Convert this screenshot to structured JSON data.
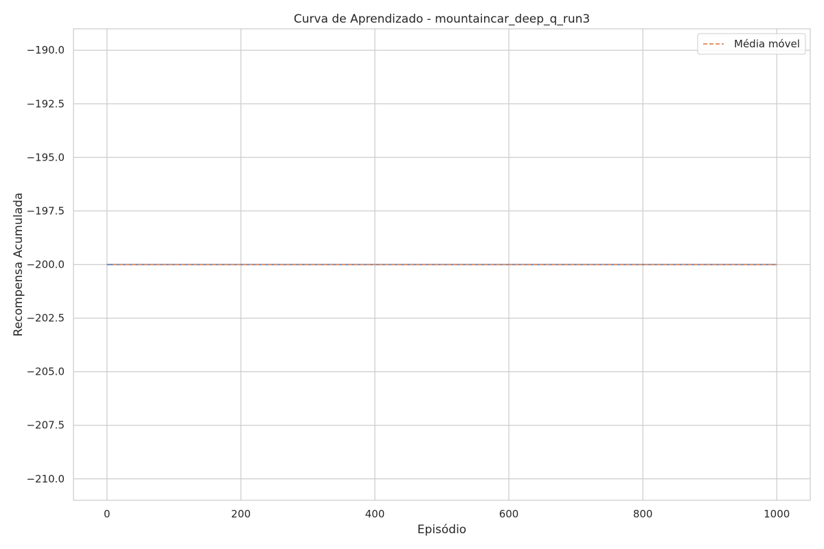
{
  "chart_data": {
    "type": "line",
    "title": "Curva de Aprendizado - mountaincar_deep_q_run3",
    "xlabel": "Episódio",
    "ylabel": "Recompensa Acumulada",
    "xlim": [
      -50,
      1050
    ],
    "ylim": [
      -211,
      -189.0
    ],
    "xticks": [
      0,
      200,
      400,
      600,
      800,
      1000
    ],
    "xtick_labels": [
      "0",
      "200",
      "400",
      "600",
      "800",
      "1000"
    ],
    "yticks": [
      -190.0,
      -192.5,
      -195.0,
      -197.5,
      -200.0,
      -202.5,
      -205.0,
      -207.5,
      -210.0
    ],
    "ytick_labels": [
      "−190.0",
      "−192.5",
      "−195.0",
      "−197.5",
      "−200.0",
      "−202.5",
      "−205.0",
      "−207.5",
      "−210.0"
    ],
    "grid": true,
    "legend_position": "top-right",
    "series": [
      {
        "values_label": "raw",
        "x": [
          0,
          1000
        ],
        "y": [
          -200.0,
          -200.0
        ],
        "color": "#4c72b0",
        "style": "solid"
      },
      {
        "name": "Média móvel",
        "x": [
          9,
          1000
        ],
        "y": [
          -200.0,
          -200.0
        ],
        "color": "#dd8452",
        "style": "dashed"
      }
    ]
  }
}
